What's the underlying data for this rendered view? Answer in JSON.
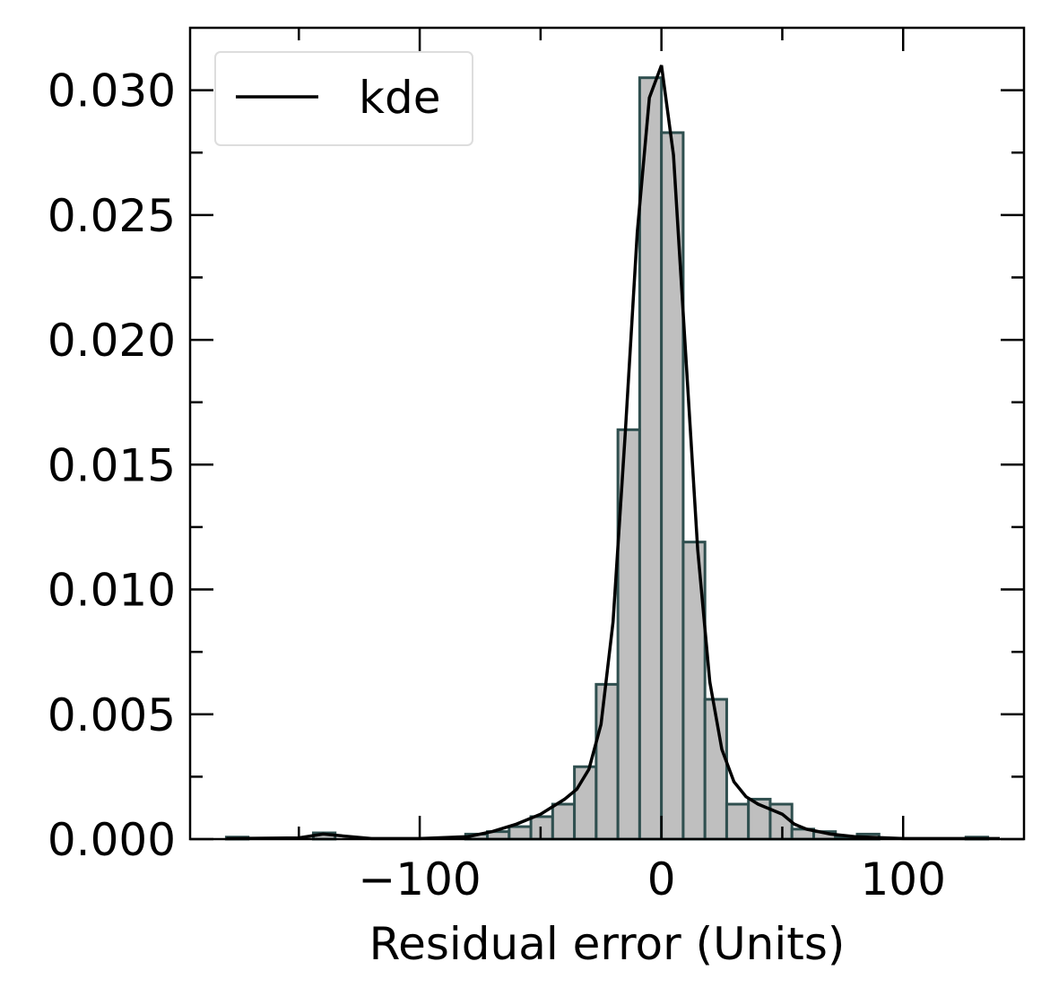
{
  "chart_data": {
    "type": "bar",
    "xlabel": "Residual error (Units)",
    "ylabel": "",
    "xlim": [
      -195,
      150
    ],
    "ylim": [
      0,
      0.0325
    ],
    "xticks": [
      -100,
      0,
      100
    ],
    "xtick_labels": [
      "−100",
      "0",
      "100"
    ],
    "xminor": [
      -150,
      -50,
      50
    ],
    "yticks": [
      0,
      0.005,
      0.01,
      0.015,
      0.02,
      0.025,
      0.03
    ],
    "ytick_labels": [
      "0.000",
      "0.005",
      "0.010",
      "0.015",
      "0.020",
      "0.025",
      "0.030"
    ],
    "bin_width": 9,
    "bins": [
      {
        "x0": -180,
        "value": 8e-05
      },
      {
        "x0": -171,
        "value": 0.0
      },
      {
        "x0": -162,
        "value": 0.0
      },
      {
        "x0": -153,
        "value": 0.0
      },
      {
        "x0": -144,
        "value": 0.00025
      },
      {
        "x0": -135,
        "value": 0.0
      },
      {
        "x0": -126,
        "value": 0.0
      },
      {
        "x0": -117,
        "value": 0.0
      },
      {
        "x0": -108,
        "value": 0.0
      },
      {
        "x0": -99,
        "value": 0.0
      },
      {
        "x0": -90,
        "value": 0.0
      },
      {
        "x0": -81,
        "value": 0.0002
      },
      {
        "x0": -72,
        "value": 0.0003
      },
      {
        "x0": -63,
        "value": 0.0005
      },
      {
        "x0": -54,
        "value": 0.0009
      },
      {
        "x0": -45,
        "value": 0.0014
      },
      {
        "x0": -36,
        "value": 0.0029
      },
      {
        "x0": -27,
        "value": 0.0062
      },
      {
        "x0": -18,
        "value": 0.0164
      },
      {
        "x0": -9,
        "value": 0.0305
      },
      {
        "x0": 0,
        "value": 0.0283
      },
      {
        "x0": 9,
        "value": 0.0119
      },
      {
        "x0": 18,
        "value": 0.0056
      },
      {
        "x0": 27,
        "value": 0.0014
      },
      {
        "x0": 36,
        "value": 0.0016
      },
      {
        "x0": 45,
        "value": 0.0014
      },
      {
        "x0": 54,
        "value": 0.0004
      },
      {
        "x0": 63,
        "value": 0.0003
      },
      {
        "x0": 72,
        "value": 0.0001
      },
      {
        "x0": 81,
        "value": 0.0002
      },
      {
        "x0": 90,
        "value": 0.0
      },
      {
        "x0": 99,
        "value": 0.0
      },
      {
        "x0": 108,
        "value": 0.0
      },
      {
        "x0": 117,
        "value": 0.0
      },
      {
        "x0": 126,
        "value": 8e-05
      }
    ],
    "series": [
      {
        "name": "kde",
        "type": "line",
        "x": [
          -180,
          -150,
          -140,
          -120,
          -100,
          -80,
          -70,
          -60,
          -50,
          -40,
          -35,
          -30,
          -25,
          -20,
          -15,
          -10,
          -5,
          0,
          5,
          10,
          15,
          20,
          25,
          30,
          35,
          40,
          45,
          50,
          55,
          60,
          70,
          80,
          100,
          120,
          140
        ],
        "y": [
          2e-05,
          5e-05,
          0.0002,
          2e-05,
          2e-05,
          0.0001,
          0.0003,
          0.0006,
          0.001,
          0.0016,
          0.002,
          0.0028,
          0.0046,
          0.0087,
          0.0162,
          0.0243,
          0.0297,
          0.031,
          0.0274,
          0.0195,
          0.0116,
          0.0063,
          0.0036,
          0.0023,
          0.0017,
          0.0014,
          0.0012,
          0.001,
          0.0006,
          0.0004,
          0.0002,
          0.0001,
          2e-05,
          2e-05,
          2e-05
        ]
      }
    ],
    "legend": {
      "position": "top-left",
      "entries": [
        "kde"
      ]
    },
    "colors": {
      "bar_fill": "#bfbfbf",
      "bar_edge": "#2f4f4f",
      "line": "#000000"
    },
    "grid": false
  }
}
